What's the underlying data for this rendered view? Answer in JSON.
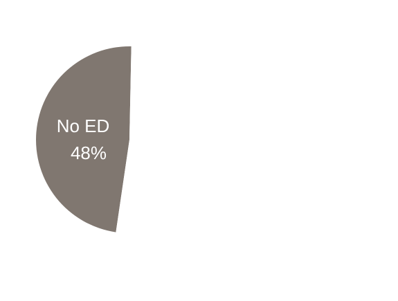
{
  "chart_data": {
    "type": "pie",
    "slices": [
      {
        "label": "No ED",
        "value": 48,
        "value_text": "48%",
        "color": "#807770"
      },
      {
        "label": "",
        "value": 52,
        "value_text": "",
        "color": "#ffffff"
      }
    ],
    "title": "",
    "legend": "none"
  }
}
